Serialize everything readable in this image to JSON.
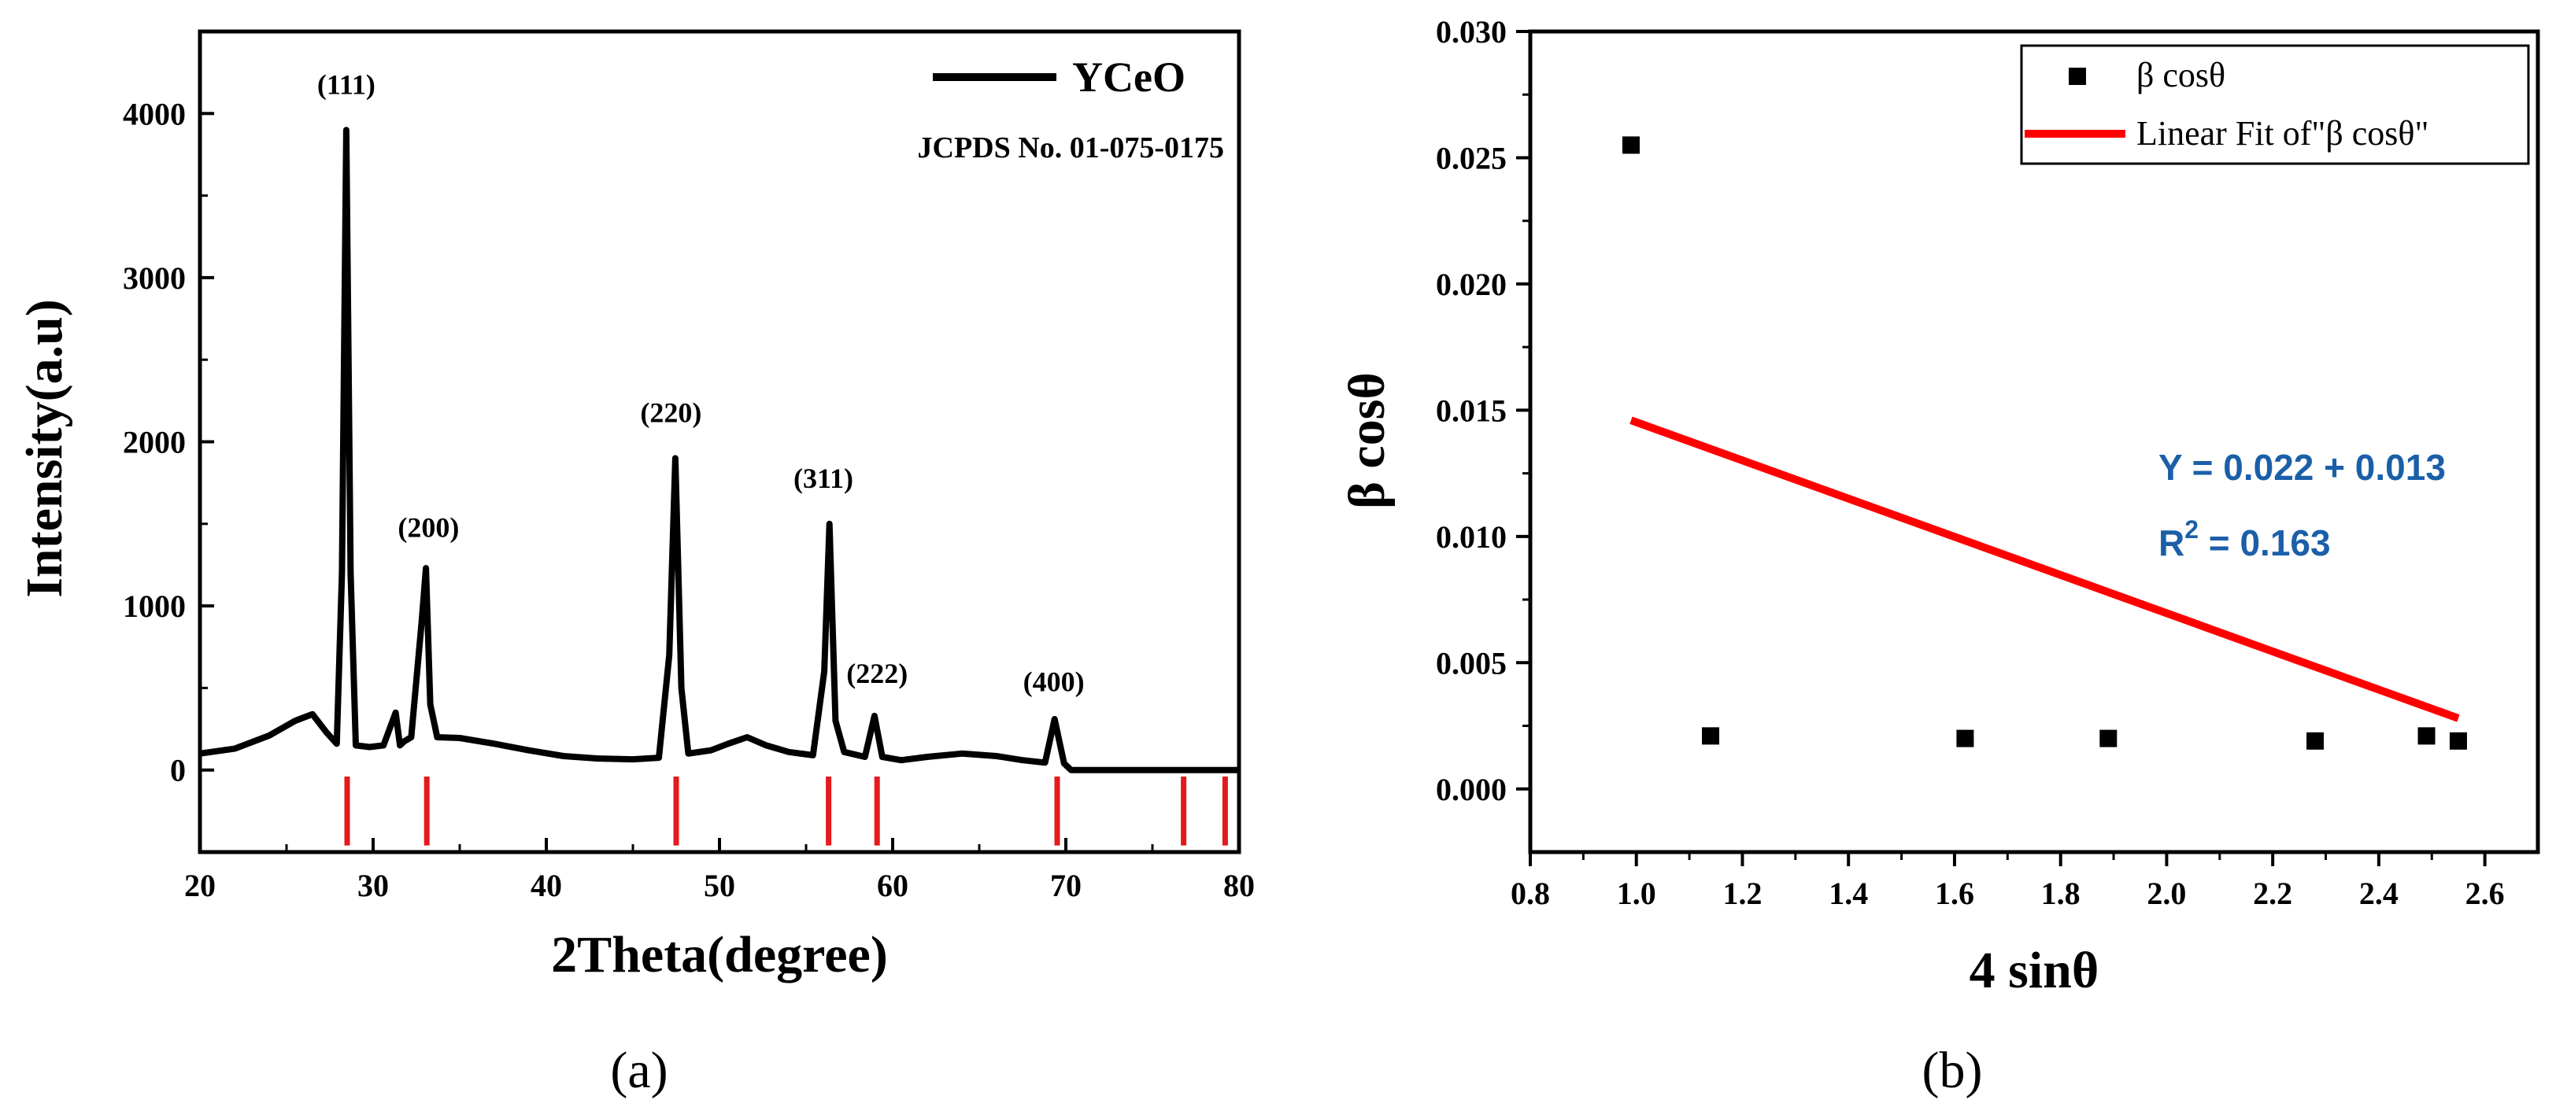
{
  "panels": {
    "a": {
      "caption": "(a)"
    },
    "b": {
      "caption": "(b)"
    }
  },
  "chart_data": [
    {
      "type": "line",
      "xlabel": "2Theta(degree)",
      "ylabel": "Intensity(a.u)",
      "xlim": [
        20,
        80
      ],
      "ylim": [
        -500,
        4500
      ],
      "x_ticks": [
        20,
        30,
        40,
        50,
        60,
        70,
        80
      ],
      "y_ticks": [
        0,
        1000,
        2000,
        3000,
        4000
      ],
      "legend": {
        "position": "top-right",
        "entries": [
          "YCeO"
        ]
      },
      "annotation": "JCPDS No. 01-075-0175",
      "series": [
        {
          "name": "YCeO",
          "color": "#000000",
          "x": [
            20,
            22,
            24,
            25.5,
            26.5,
            27.3,
            27.9,
            28.2,
            28.45,
            28.7,
            29.0,
            29.8,
            30.6,
            31.3,
            31.55,
            31.8,
            32.2,
            32.8,
            33.05,
            33.3,
            33.7,
            35,
            37,
            39,
            41,
            43,
            45,
            46.5,
            47.1,
            47.45,
            47.8,
            48.2,
            49.5,
            50.5,
            51.6,
            52.7,
            54,
            55.4,
            56.05,
            56.35,
            56.7,
            57.2,
            58.4,
            58.95,
            59.4,
            60.5,
            62,
            64,
            66,
            67.5,
            68.8,
            69.35,
            69.9,
            70.3,
            72,
            75,
            80
          ],
          "y": [
            100,
            130,
            210,
            300,
            340,
            230,
            160,
            1200,
            3900,
            1200,
            150,
            140,
            150,
            350,
            150,
            175,
            200,
            900,
            1230,
            400,
            200,
            195,
            160,
            120,
            85,
            70,
            65,
            75,
            700,
            1900,
            500,
            100,
            120,
            160,
            200,
            150,
            110,
            90,
            600,
            1500,
            300,
            110,
            80,
            330,
            80,
            60,
            80,
            100,
            85,
            60,
            45,
            310,
            40,
            0,
            0,
            0,
            0
          ]
        }
      ],
      "peak_labels": [
        {
          "label": "(111)",
          "x": 28.45,
          "y": 4120
        },
        {
          "label": "(200)",
          "x": 33.2,
          "y": 1420
        },
        {
          "label": "(220)",
          "x": 47.2,
          "y": 2120
        },
        {
          "label": "(311)",
          "x": 56.0,
          "y": 1720
        },
        {
          "label": "(222)",
          "x": 59.1,
          "y": 530
        },
        {
          "label": "(400)",
          "x": 69.3,
          "y": 480
        }
      ],
      "reference_lines": {
        "color": "#e41a1c",
        "x": [
          28.5,
          33.1,
          47.5,
          56.3,
          59.1,
          69.5,
          76.8,
          79.2
        ],
        "y_top": -40,
        "y_bottom": -460
      }
    },
    {
      "type": "scatter",
      "xlabel": "4 sinθ",
      "ylabel": "β cosθ",
      "xlim": [
        0.8,
        2.7
      ],
      "ylim": [
        -0.0025,
        0.03
      ],
      "x_ticks": [
        0.8,
        1.0,
        1.2,
        1.4,
        1.6,
        1.8,
        2.0,
        2.2,
        2.4,
        2.6
      ],
      "y_ticks": [
        0.0,
        0.005,
        0.01,
        0.015,
        0.02,
        0.025,
        0.03
      ],
      "x_tick_labels": [
        "0.8",
        "1.0",
        "1.2",
        "1.4",
        "1.6",
        "1.8",
        "2.0",
        "2.2",
        "2.4",
        "2.6"
      ],
      "y_tick_labels": [
        "0.000",
        "0.005",
        "0.010",
        "0.015",
        "0.020",
        "0.025",
        "0.030"
      ],
      "legend": {
        "position": "top-right",
        "entries": [
          "β cosθ",
          "Linear Fit of\"β cosθ\""
        ]
      },
      "series": [
        {
          "name": "β cosθ",
          "color": "#000000",
          "x": [
            0.99,
            1.14,
            1.62,
            1.89,
            2.28,
            2.49,
            2.55
          ],
          "y": [
            0.0255,
            0.0021,
            0.002,
            0.002,
            0.0019,
            0.0021,
            0.0019
          ]
        },
        {
          "name": "Linear Fit of\"β cosθ\"",
          "color": "#ff0000",
          "x": [
            0.99,
            2.55
          ],
          "y": [
            0.0146,
            0.0028
          ]
        }
      ],
      "equation": "Y = 0.022 + 0.013",
      "r2_prefix": "R",
      "r2_sup": "2",
      "r2_value": " = 0.163",
      "annotation_color": "#1a5fa8"
    }
  ]
}
